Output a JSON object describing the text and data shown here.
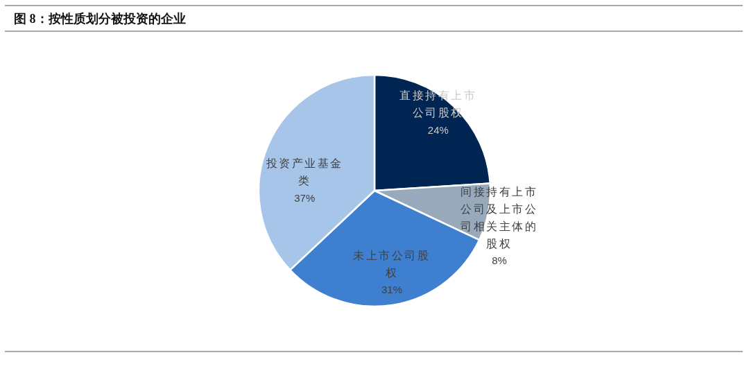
{
  "chart_data": {
    "type": "pie",
    "title": "图 8：按性质划分被投资的企业",
    "categories": [
      "直接持有上市公司股权",
      "间接持有上市公司及上市公司相关主体的股权",
      "未上市公司股权",
      "投资产业基金类"
    ],
    "values": [
      24,
      8,
      31,
      37
    ],
    "colors": [
      "#012553",
      "#97a9bb",
      "#3f7fcf",
      "#a7c5e8"
    ],
    "value_labels": [
      "24%",
      "8%",
      "31%",
      "37%"
    ]
  }
}
